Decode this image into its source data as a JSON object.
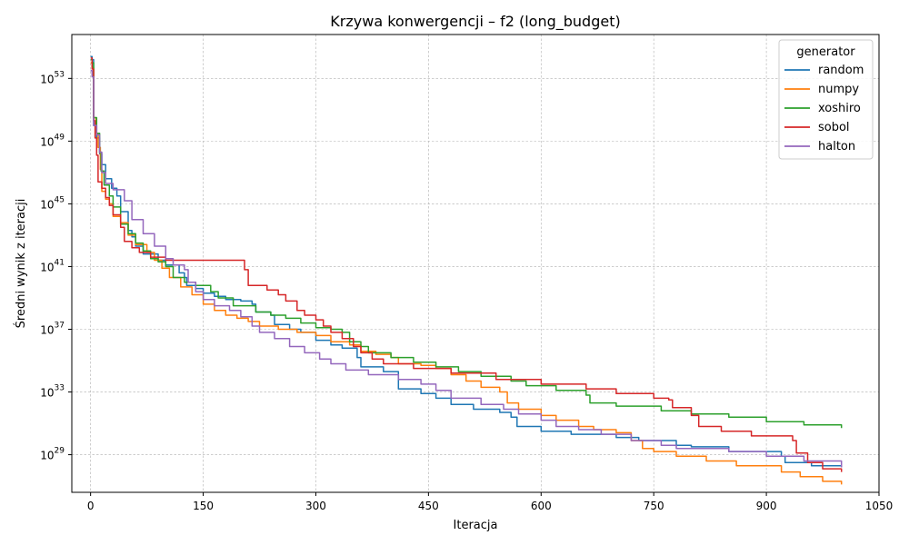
{
  "chart_data": {
    "type": "line",
    "title": "Krzywa konwergencji – f2 (long_budget)",
    "xlabel": "Iteracja",
    "ylabel": "Średni wynik z iteracji",
    "xlim": [
      -25,
      1050
    ],
    "ylim_log10": [
      26.6,
      55.8
    ],
    "yscale": "log",
    "grid": true,
    "legend": {
      "title": "generator",
      "position": "top-right"
    },
    "x_ticks": [
      0,
      150,
      300,
      450,
      600,
      750,
      900,
      1050
    ],
    "y_ticks": [
      {
        "exp": 29,
        "label": "10",
        "sup": "29"
      },
      {
        "exp": 33,
        "label": "10",
        "sup": "33"
      },
      {
        "exp": 37,
        "label": "10",
        "sup": "37"
      },
      {
        "exp": 41,
        "label": "10",
        "sup": "41"
      },
      {
        "exp": 45,
        "label": "10",
        "sup": "45"
      },
      {
        "exp": 49,
        "label": "10",
        "sup": "49"
      },
      {
        "exp": 53,
        "label": "10",
        "sup": "53"
      }
    ],
    "series": [
      {
        "name": "random",
        "color": "#1f77b4",
        "points": [
          [
            0,
            54.4
          ],
          [
            2,
            54.2
          ],
          [
            4,
            50.0
          ],
          [
            8,
            49.2
          ],
          [
            12,
            48.2
          ],
          [
            15,
            47.5
          ],
          [
            20,
            46.6
          ],
          [
            28,
            46.0
          ],
          [
            35,
            45.5
          ],
          [
            40,
            44.5
          ],
          [
            50,
            43.3
          ],
          [
            55,
            42.9
          ],
          [
            60,
            42.3
          ],
          [
            70,
            41.8
          ],
          [
            90,
            41.4
          ],
          [
            100,
            41.1
          ],
          [
            118,
            40.6
          ],
          [
            125,
            40.3
          ],
          [
            128,
            39.8
          ],
          [
            140,
            39.6
          ],
          [
            150,
            39.3
          ],
          [
            165,
            39.1
          ],
          [
            180,
            38.9
          ],
          [
            200,
            38.8
          ],
          [
            215,
            38.6
          ],
          [
            220,
            38.1
          ],
          [
            240,
            37.9
          ],
          [
            245,
            37.3
          ],
          [
            265,
            37.0
          ],
          [
            280,
            36.8
          ],
          [
            300,
            36.3
          ],
          [
            320,
            36.0
          ],
          [
            335,
            35.8
          ],
          [
            355,
            35.2
          ],
          [
            360,
            34.6
          ],
          [
            390,
            34.3
          ],
          [
            410,
            33.2
          ],
          [
            440,
            32.9
          ],
          [
            460,
            32.6
          ],
          [
            480,
            32.2
          ],
          [
            510,
            31.9
          ],
          [
            545,
            31.7
          ],
          [
            560,
            31.4
          ],
          [
            568,
            30.8
          ],
          [
            600,
            30.5
          ],
          [
            640,
            30.3
          ],
          [
            700,
            30.1
          ],
          [
            730,
            29.9
          ],
          [
            780,
            29.6
          ],
          [
            800,
            29.5
          ],
          [
            850,
            29.2
          ],
          [
            920,
            28.9
          ],
          [
            925,
            28.5
          ],
          [
            960,
            28.3
          ],
          [
            1000,
            28.2
          ]
        ]
      },
      {
        "name": "numpy",
        "color": "#ff7f0e",
        "points": [
          [
            0,
            54.0
          ],
          [
            2,
            53.7
          ],
          [
            4,
            50.5
          ],
          [
            7,
            49.5
          ],
          [
            10,
            48.6
          ],
          [
            13,
            47.2
          ],
          [
            15,
            45.8
          ],
          [
            20,
            45.3
          ],
          [
            25,
            45.0
          ],
          [
            30,
            44.2
          ],
          [
            40,
            43.8
          ],
          [
            50,
            43.0
          ],
          [
            60,
            42.4
          ],
          [
            75,
            41.9
          ],
          [
            85,
            41.4
          ],
          [
            95,
            40.9
          ],
          [
            105,
            40.3
          ],
          [
            120,
            39.7
          ],
          [
            135,
            39.2
          ],
          [
            150,
            38.6
          ],
          [
            165,
            38.2
          ],
          [
            180,
            37.9
          ],
          [
            195,
            37.7
          ],
          [
            210,
            37.5
          ],
          [
            225,
            37.2
          ],
          [
            250,
            37.0
          ],
          [
            275,
            36.8
          ],
          [
            300,
            36.6
          ],
          [
            320,
            36.2
          ],
          [
            345,
            36.0
          ],
          [
            360,
            35.6
          ],
          [
            380,
            35.4
          ],
          [
            400,
            35.2
          ],
          [
            410,
            34.8
          ],
          [
            440,
            34.7
          ],
          [
            460,
            34.5
          ],
          [
            480,
            34.1
          ],
          [
            500,
            33.7
          ],
          [
            520,
            33.3
          ],
          [
            545,
            33.0
          ],
          [
            555,
            32.3
          ],
          [
            570,
            31.9
          ],
          [
            600,
            31.5
          ],
          [
            620,
            31.2
          ],
          [
            650,
            30.8
          ],
          [
            670,
            30.6
          ],
          [
            700,
            30.4
          ],
          [
            720,
            29.9
          ],
          [
            735,
            29.4
          ],
          [
            750,
            29.2
          ],
          [
            780,
            28.9
          ],
          [
            820,
            28.6
          ],
          [
            860,
            28.3
          ],
          [
            920,
            27.9
          ],
          [
            945,
            27.6
          ],
          [
            975,
            27.3
          ],
          [
            1000,
            27.1
          ]
        ]
      },
      {
        "name": "xoshiro",
        "color": "#2ca02c",
        "points": [
          [
            0,
            54.2
          ],
          [
            2,
            54.0
          ],
          [
            4,
            50.5
          ],
          [
            8,
            49.5
          ],
          [
            12,
            48.3
          ],
          [
            14,
            47.1
          ],
          [
            18,
            46.2
          ],
          [
            25,
            45.5
          ],
          [
            30,
            44.8
          ],
          [
            40,
            43.7
          ],
          [
            50,
            43.1
          ],
          [
            60,
            42.5
          ],
          [
            70,
            42.0
          ],
          [
            80,
            41.5
          ],
          [
            90,
            41.3
          ],
          [
            100,
            41.0
          ],
          [
            110,
            40.3
          ],
          [
            125,
            40.0
          ],
          [
            140,
            39.8
          ],
          [
            160,
            39.4
          ],
          [
            170,
            39.0
          ],
          [
            190,
            38.5
          ],
          [
            220,
            38.1
          ],
          [
            240,
            37.9
          ],
          [
            260,
            37.7
          ],
          [
            280,
            37.4
          ],
          [
            300,
            37.1
          ],
          [
            320,
            37.0
          ],
          [
            335,
            36.8
          ],
          [
            345,
            36.2
          ],
          [
            360,
            35.9
          ],
          [
            370,
            35.5
          ],
          [
            400,
            35.2
          ],
          [
            430,
            34.9
          ],
          [
            460,
            34.6
          ],
          [
            490,
            34.3
          ],
          [
            520,
            34.0
          ],
          [
            560,
            33.7
          ],
          [
            580,
            33.4
          ],
          [
            620,
            33.1
          ],
          [
            660,
            32.8
          ],
          [
            665,
            32.3
          ],
          [
            700,
            32.1
          ],
          [
            760,
            31.8
          ],
          [
            800,
            31.6
          ],
          [
            850,
            31.4
          ],
          [
            900,
            31.1
          ],
          [
            950,
            30.9
          ],
          [
            1000,
            30.7
          ]
        ]
      },
      {
        "name": "sobol",
        "color": "#d62728",
        "points": [
          [
            0,
            54.3
          ],
          [
            2,
            53.6
          ],
          [
            4,
            50.3
          ],
          [
            6,
            49.2
          ],
          [
            8,
            48.1
          ],
          [
            10,
            46.4
          ],
          [
            15,
            46.0
          ],
          [
            20,
            45.4
          ],
          [
            25,
            44.9
          ],
          [
            30,
            44.3
          ],
          [
            40,
            43.5
          ],
          [
            45,
            42.6
          ],
          [
            55,
            42.2
          ],
          [
            65,
            41.9
          ],
          [
            80,
            41.6
          ],
          [
            100,
            41.4
          ],
          [
            150,
            41.4
          ],
          [
            195,
            41.4
          ],
          [
            205,
            40.8
          ],
          [
            210,
            39.8
          ],
          [
            235,
            39.5
          ],
          [
            250,
            39.2
          ],
          [
            260,
            38.8
          ],
          [
            275,
            38.2
          ],
          [
            285,
            37.9
          ],
          [
            300,
            37.6
          ],
          [
            310,
            37.2
          ],
          [
            320,
            36.8
          ],
          [
            335,
            36.4
          ],
          [
            350,
            35.9
          ],
          [
            360,
            35.5
          ],
          [
            375,
            35.1
          ],
          [
            390,
            34.8
          ],
          [
            430,
            34.5
          ],
          [
            480,
            34.2
          ],
          [
            540,
            33.8
          ],
          [
            600,
            33.5
          ],
          [
            660,
            33.2
          ],
          [
            700,
            32.9
          ],
          [
            750,
            32.6
          ],
          [
            770,
            32.5
          ],
          [
            775,
            32.0
          ],
          [
            800,
            31.5
          ],
          [
            810,
            30.8
          ],
          [
            840,
            30.5
          ],
          [
            880,
            30.2
          ],
          [
            935,
            29.9
          ],
          [
            940,
            29.1
          ],
          [
            955,
            28.5
          ],
          [
            975,
            28.1
          ],
          [
            1000,
            27.9
          ]
        ]
      },
      {
        "name": "halton",
        "color": "#9467bd",
        "points": [
          [
            0,
            53.5
          ],
          [
            2,
            53.1
          ],
          [
            4,
            50.0
          ],
          [
            8,
            49.4
          ],
          [
            12,
            48.3
          ],
          [
            15,
            47.0
          ],
          [
            20,
            46.3
          ],
          [
            30,
            45.9
          ],
          [
            45,
            45.2
          ],
          [
            55,
            44.0
          ],
          [
            70,
            43.1
          ],
          [
            85,
            42.3
          ],
          [
            100,
            41.5
          ],
          [
            110,
            41.1
          ],
          [
            125,
            40.8
          ],
          [
            130,
            40.0
          ],
          [
            140,
            39.4
          ],
          [
            150,
            38.9
          ],
          [
            165,
            38.5
          ],
          [
            185,
            38.2
          ],
          [
            200,
            37.8
          ],
          [
            215,
            37.2
          ],
          [
            225,
            36.8
          ],
          [
            245,
            36.4
          ],
          [
            265,
            35.9
          ],
          [
            285,
            35.5
          ],
          [
            305,
            35.1
          ],
          [
            320,
            34.8
          ],
          [
            340,
            34.4
          ],
          [
            370,
            34.1
          ],
          [
            410,
            33.8
          ],
          [
            440,
            33.5
          ],
          [
            460,
            33.1
          ],
          [
            480,
            32.6
          ],
          [
            520,
            32.2
          ],
          [
            550,
            31.9
          ],
          [
            570,
            31.6
          ],
          [
            600,
            31.2
          ],
          [
            620,
            30.8
          ],
          [
            650,
            30.6
          ],
          [
            680,
            30.3
          ],
          [
            720,
            29.9
          ],
          [
            760,
            29.6
          ],
          [
            780,
            29.4
          ],
          [
            850,
            29.2
          ],
          [
            900,
            28.9
          ],
          [
            950,
            28.6
          ],
          [
            1000,
            28.2
          ]
        ]
      }
    ]
  }
}
